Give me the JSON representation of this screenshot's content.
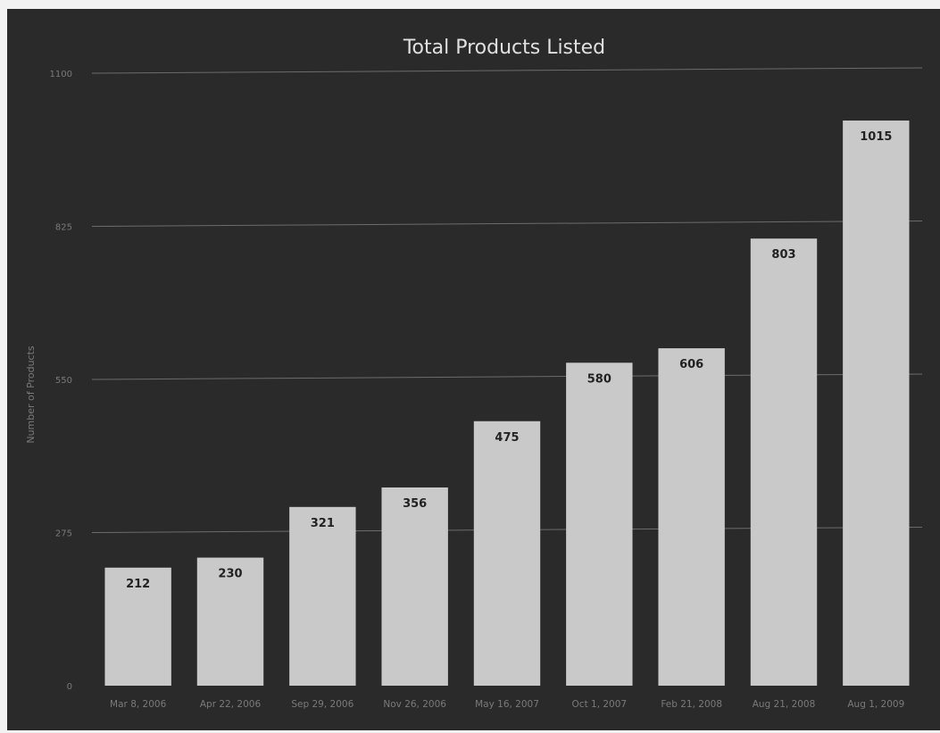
{
  "colors": {
    "background": "#2a2a2a",
    "bar": "#c9c9c9",
    "grid": "#6c6c6c",
    "title": "#e0e0e0",
    "label": "#222222",
    "axis_text": "#7a7a7a"
  },
  "chart_data": {
    "type": "bar",
    "title": "Total Products Listed",
    "ylabel": "Number of Products",
    "xlabel": "",
    "categories": [
      "Mar 8, 2006",
      "Apr 22, 2006",
      "Sep 29, 2006",
      "Nov 26, 2006",
      "May 16, 2007",
      "Oct 1, 2007",
      "Feb 21, 2008",
      "Aug 21, 2008",
      "Aug 1, 2009"
    ],
    "values": [
      212,
      230,
      321,
      356,
      475,
      580,
      606,
      803,
      1015
    ],
    "yticks": [
      "0",
      "275",
      "550",
      "825",
      "1100"
    ],
    "ytick_values": [
      0,
      275,
      550,
      825,
      1100
    ],
    "ylim": [
      0,
      1100
    ],
    "grid": true,
    "legend": "none"
  }
}
